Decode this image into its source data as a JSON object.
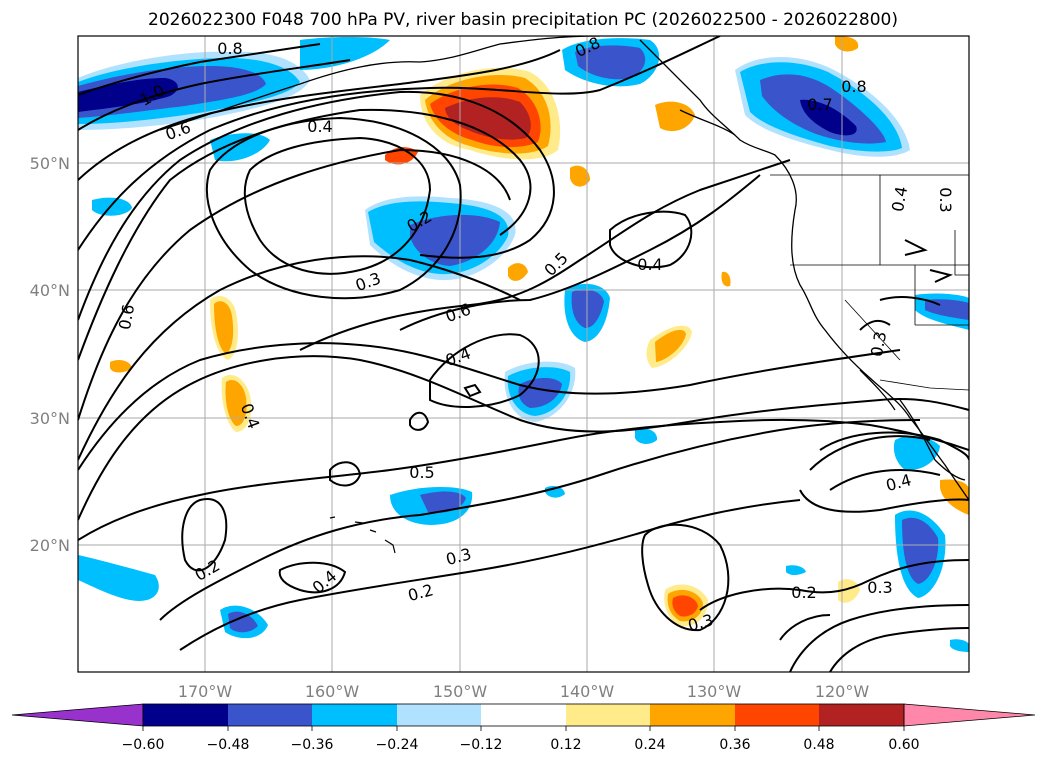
{
  "title": "2026022300 F048 700 hPa PV, river basin precipitation PC (2026022500 - 2026022800)",
  "axes": {
    "lon_labels": [
      "170°W",
      "160°W",
      "150°W",
      "140°W",
      "130°W",
      "120°W"
    ],
    "lat_labels": [
      "50°N",
      "40°N",
      "30°N",
      "20°N"
    ],
    "lon_range": [
      -180,
      -110
    ],
    "lat_range": [
      10,
      60
    ],
    "grid": true
  },
  "colorbar": {
    "ticks": [
      "−0.60",
      "−0.48",
      "−0.36",
      "−0.24",
      "−0.12",
      "0.12",
      "0.24",
      "0.36",
      "0.48",
      "0.60"
    ],
    "colors": [
      "#9932cc",
      "#00008b",
      "#3a55cc",
      "#00bfff",
      "#b0e2ff",
      "#ffffff",
      "#ffeb8a",
      "#ffa500",
      "#ff4500",
      "#b22222",
      "#ff88aa"
    ],
    "extend": "both"
  },
  "contour_labels": [
    "0.8",
    "1.0",
    "0.6",
    "0.4",
    "0.8",
    "0.7",
    "0.8",
    "0.4",
    "0.3",
    "0.2",
    "0.3",
    "0.5",
    "0.4",
    "0.6",
    "0.6",
    "0.4",
    "0.3",
    "0.5",
    "0.4",
    "0.4",
    "0.2",
    "0.4",
    "0.3",
    "0.2",
    "0.3",
    "0.2",
    "0.3"
  ]
}
